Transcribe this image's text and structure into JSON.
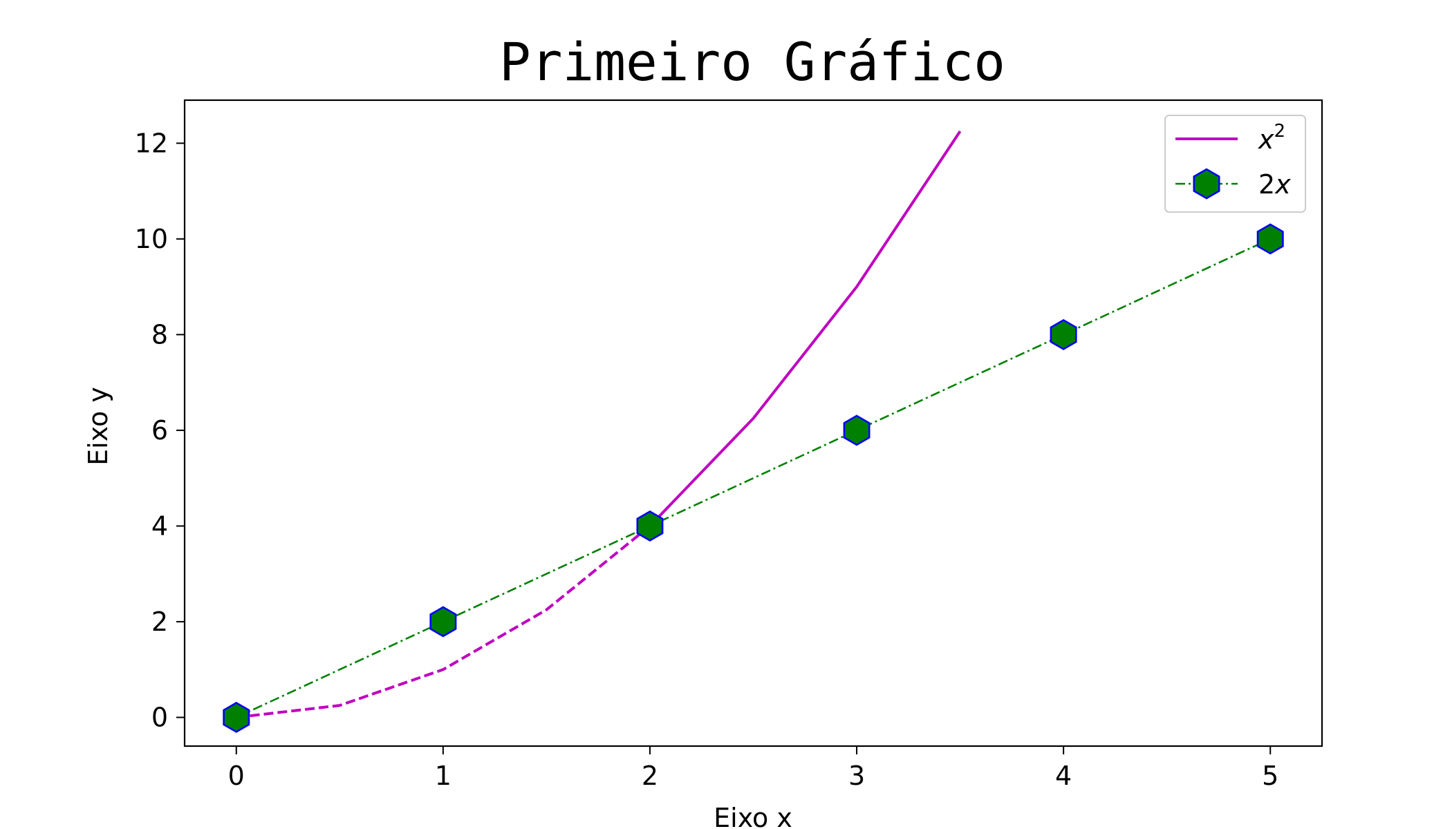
{
  "chart_data": {
    "type": "line",
    "title": "Primeiro Gráfico",
    "xlabel": "Eixo x",
    "ylabel": "Eixo y",
    "xlim": [
      -0.25,
      5.25
    ],
    "ylim": [
      -0.6,
      12.9
    ],
    "xticks": [
      0,
      1,
      2,
      3,
      4,
      5
    ],
    "yticks": [
      0,
      2,
      4,
      6,
      8,
      10,
      12
    ],
    "grid": false,
    "legend_position": "top-right",
    "series": [
      {
        "name": "x²",
        "legend_base": "x",
        "legend_sup": "2",
        "color": "#bf00bf",
        "x": [
          0,
          0.5,
          1,
          1.5,
          2,
          2.5,
          3,
          3.5
        ],
        "y": [
          0,
          0.25,
          1,
          2.25,
          4,
          6.25,
          9,
          12.25
        ],
        "segments": [
          {
            "from": 0,
            "to": 4,
            "style": "dashed"
          },
          {
            "from": 4,
            "to": 7,
            "style": "solid"
          }
        ]
      },
      {
        "name": "2x",
        "legend_prefix": "2",
        "legend_var": "x",
        "color": "#008000",
        "marker": "hexagon",
        "marker_face": "#008000",
        "marker_edge": "#0000ff",
        "line_style": "dash-dot",
        "x": [
          0,
          1,
          2,
          3,
          4,
          5
        ],
        "y": [
          0,
          2,
          4,
          6,
          8,
          10
        ]
      }
    ]
  }
}
